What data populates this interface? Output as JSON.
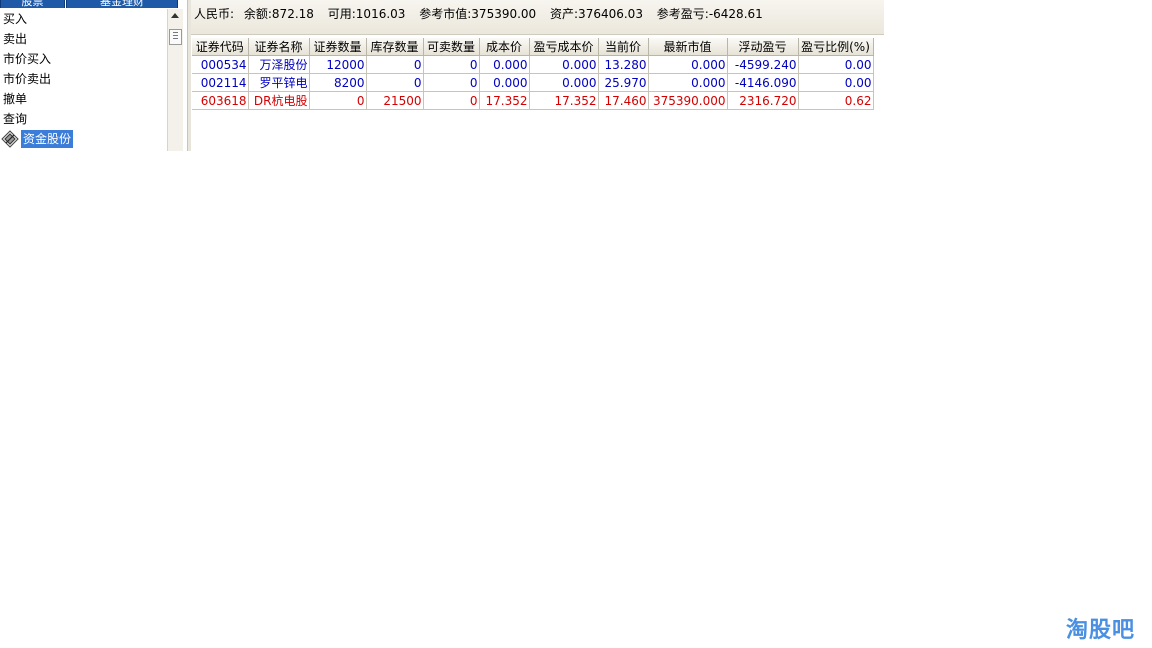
{
  "left_panel": {
    "tabs": [
      "股票",
      "基金理财"
    ],
    "tree_items": [
      "买入",
      "卖出",
      "市价买入",
      "市价卖出",
      "撤单",
      "查询"
    ],
    "selected_item": "资金股份"
  },
  "summary": {
    "currency": "人民币:",
    "balance": "余额:872.18",
    "available": "可用:1016.03",
    "market_value": "参考市值:375390.00",
    "assets": "资产:376406.03",
    "profit_loss": "参考盈亏:-6428.61"
  },
  "table": {
    "columns": [
      "证券代码",
      "证券名称",
      "证券数量",
      "库存数量",
      "可卖数量",
      "成本价",
      "盈亏成本价",
      "当前价",
      "最新市值",
      "浮动盈亏",
      "盈亏比例(%)"
    ],
    "rows": [
      [
        "000534",
        "万泽股份",
        "12000",
        "0",
        "0",
        "0.000",
        "0.000",
        "13.280",
        "0.000",
        "-4599.240",
        "0.00"
      ],
      [
        "002114",
        "罗平锌电",
        "8200",
        "0",
        "0",
        "0.000",
        "0.000",
        "25.970",
        "0.000",
        "-4146.090",
        "0.00"
      ],
      [
        "603618",
        "DR杭电股",
        "0",
        "21500",
        "0",
        "17.352",
        "17.352",
        "17.460",
        "375390.000",
        "2316.720",
        "0.62"
      ]
    ],
    "row_colors": [
      "#0000c0",
      "#0000c0",
      "#d40000"
    ]
  },
  "watermark": "淘股吧"
}
